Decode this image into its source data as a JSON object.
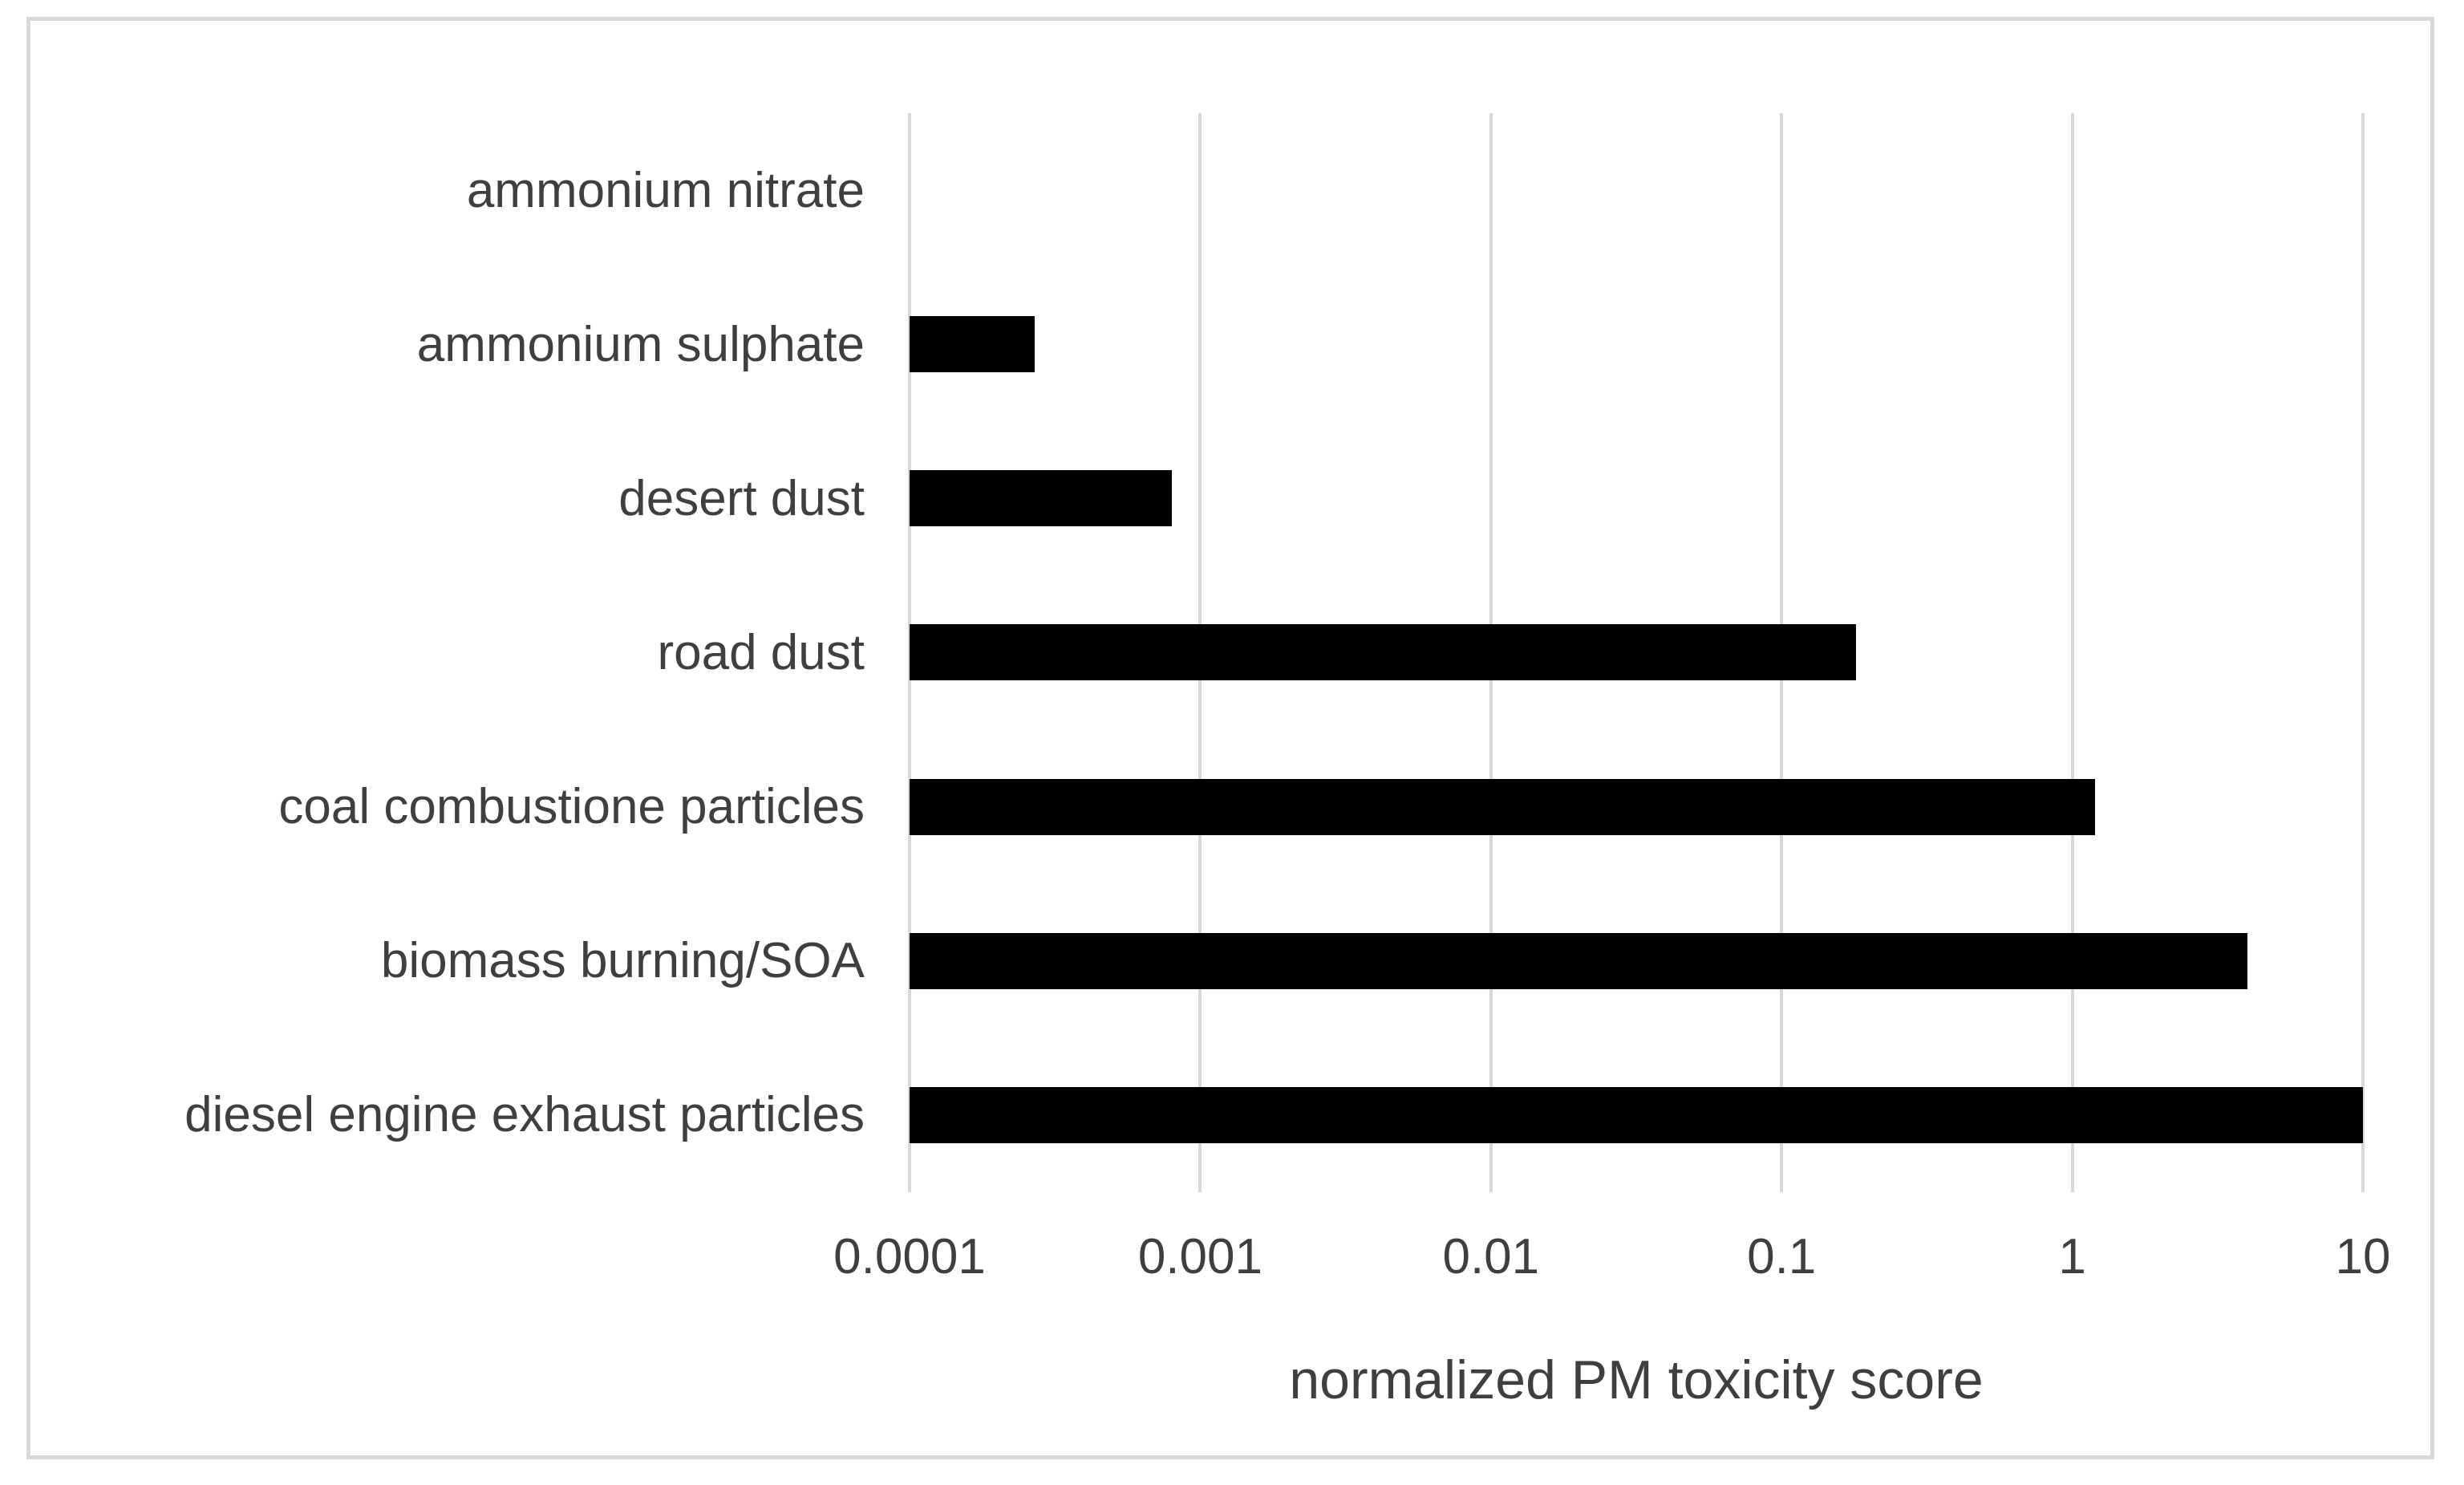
{
  "chart_data": {
    "type": "bar",
    "orientation": "horizontal",
    "title": "",
    "categories": [
      "ammonium nitrate",
      "ammonium sulphate",
      "desert dust",
      "road dust",
      "coal combustione particles",
      "biomass burning/SOA",
      "diesel engine exhaust particles"
    ],
    "values": [
      0.0001,
      0.00027,
      0.0008,
      0.18,
      1.2,
      4,
      10
    ],
    "xlabel": "normalized PM toxicity score",
    "ylabel": "",
    "x_scale": "log",
    "xlim": [
      0.0001,
      10
    ],
    "x_ticks": [
      {
        "label": "0.0001",
        "value": 0.0001
      },
      {
        "label": "0.001",
        "value": 0.001
      },
      {
        "label": "0.01",
        "value": 0.01
      },
      {
        "label": "0.1",
        "value": 0.1
      },
      {
        "label": "1",
        "value": 1
      },
      {
        "label": "10",
        "value": 10
      }
    ],
    "grid": "vertical-gridlines-on",
    "legend": "none",
    "note_no_visible_bar": "ammonium nitrate bar has zero length (value at axis minimum)"
  },
  "colors": {
    "bar": "#000000",
    "gridline": "#d9d9d9",
    "frame_border": "#d9d9d9",
    "text": "#3f3f3f",
    "background": "#ffffff"
  }
}
